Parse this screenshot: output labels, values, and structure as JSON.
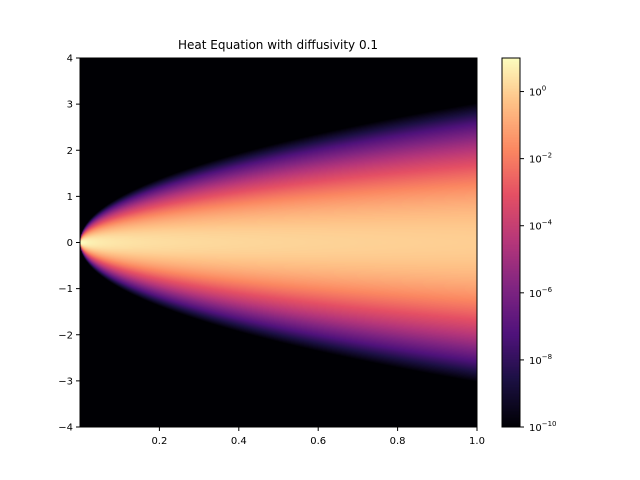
{
  "chart_data": {
    "type": "heatmap",
    "title": "Heat Equation with diffusivity 0.1",
    "diffusivity": 0.1,
    "xlabel": "",
    "ylabel": "",
    "xlim": [
      0,
      1
    ],
    "ylim": [
      -4,
      4
    ],
    "x_ticks": [
      "0.2",
      "0.4",
      "0.6",
      "0.8",
      "1.0"
    ],
    "x_tick_values": [
      0.2,
      0.4,
      0.6,
      0.8,
      1.0
    ],
    "y_ticks": [
      "4",
      "3",
      "2",
      "1",
      "0",
      "−1",
      "−2",
      "−3",
      "−4"
    ],
    "y_tick_values": [
      4,
      3,
      2,
      1,
      0,
      -1,
      -2,
      -3,
      -4
    ],
    "colormap": "magma",
    "color_scale": "log",
    "color_range": [
      1e-10,
      10
    ],
    "colorbar_ticks": [
      {
        "base": "10",
        "exp": "0",
        "value": 1
      },
      {
        "base": "10",
        "exp": "−2",
        "value": 0.01
      },
      {
        "base": "10",
        "exp": "−4",
        "value": 0.0001
      },
      {
        "base": "10",
        "exp": "−6",
        "value": 1e-06
      },
      {
        "base": "10",
        "exp": "−8",
        "value": 1e-08
      },
      {
        "base": "10",
        "exp": "−10",
        "value": 1e-10
      }
    ],
    "grid": false,
    "colorbar_position": "right"
  }
}
